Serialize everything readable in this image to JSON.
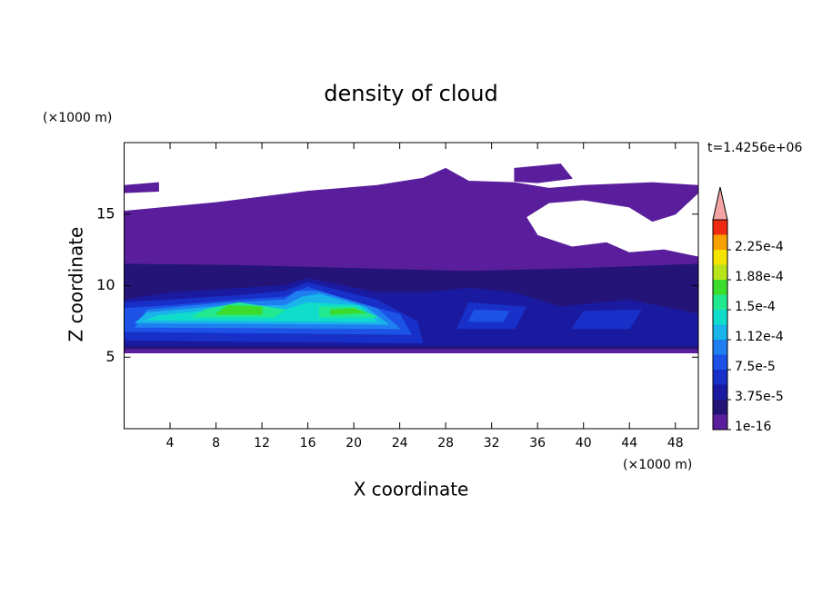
{
  "chart_data": {
    "type": "contour",
    "title": "density of cloud",
    "x_label": "X coordinate",
    "y_label": "Z coordinate",
    "x_unit": "(×1000 m)",
    "y_unit": "(×1000 m)",
    "annotation": "t=1.4256e+06",
    "xlim": [
      0,
      50
    ],
    "ylim": [
      0,
      20
    ],
    "xticks": [
      4,
      8,
      12,
      16,
      20,
      24,
      28,
      32,
      36,
      40,
      44,
      48
    ],
    "yticks": [
      5,
      10,
      15
    ],
    "levels": [
      1e-16,
      1.875e-05,
      3.75e-05,
      5.625e-05,
      7.5e-05,
      9.375e-05,
      0.0001125,
      0.00013125,
      0.00015,
      0.00016875,
      0.0001875,
      0.00020625,
      0.000225,
      0.00024375
    ],
    "colors": [
      "#5a1e9c",
      "#241478",
      "#1a1aa0",
      "#1830c8",
      "#1c52e6",
      "#1f7ff0",
      "#18b4ea",
      "#10dccc",
      "#22e890",
      "#3cdc2c",
      "#b8e41c",
      "#f4e400",
      "#f8a000",
      "#ee2a10"
    ],
    "extend_color": "#f4a4a4",
    "cbar_ticks": [
      {
        "value": 1e-16,
        "label": "1e-16"
      },
      {
        "value": 3.75e-05,
        "label": "3.75e-5"
      },
      {
        "value": 7.5e-05,
        "label": "7.5e-5"
      },
      {
        "value": 0.0001125,
        "label": "1.12e-4"
      },
      {
        "value": 0.00015,
        "label": "1.5e-4"
      },
      {
        "value": 0.0001875,
        "label": "1.88e-4"
      },
      {
        "value": 0.000225,
        "label": "2.25e-4"
      }
    ],
    "regions": [
      {
        "value": 1e-16,
        "points": [
          [
            0,
            5.3
          ],
          [
            50,
            5.3
          ],
          [
            50,
            12
          ],
          [
            47,
            12.5
          ],
          [
            44,
            12.3
          ],
          [
            42,
            13
          ],
          [
            39,
            12.7
          ],
          [
            36,
            13.5
          ],
          [
            35,
            14.8
          ],
          [
            37,
            15.8
          ],
          [
            40,
            16
          ],
          [
            44,
            15.5
          ],
          [
            46,
            14.5
          ],
          [
            48,
            15
          ],
          [
            50,
            16.5
          ],
          [
            50,
            17
          ],
          [
            46,
            17.2
          ],
          [
            40,
            17
          ],
          [
            37,
            16.8
          ],
          [
            34,
            17.2
          ],
          [
            30,
            17.3
          ],
          [
            28,
            18.2
          ],
          [
            26,
            17.5
          ],
          [
            22,
            17
          ],
          [
            16,
            16.6
          ],
          [
            12,
            16.2
          ],
          [
            8,
            15.8
          ],
          [
            4,
            15.5
          ],
          [
            0,
            15.2
          ]
        ]
      },
      {
        "value": 1e-16,
        "points": [
          [
            34,
            18.2
          ],
          [
            38,
            18.5
          ],
          [
            39,
            17.5
          ],
          [
            36,
            17.2
          ],
          [
            34,
            17.3
          ]
        ]
      },
      {
        "value": 1e-16,
        "points": [
          [
            0,
            17
          ],
          [
            3,
            17.2
          ],
          [
            3,
            16.6
          ],
          [
            0,
            16.5
          ]
        ]
      },
      {
        "value": 1.875e-05,
        "points": [
          [
            0,
            5.6
          ],
          [
            50,
            5.6
          ],
          [
            50,
            11.5
          ],
          [
            40,
            11.2
          ],
          [
            30,
            11
          ],
          [
            20,
            11.2
          ],
          [
            10,
            11.4
          ],
          [
            0,
            11.5
          ]
        ]
      },
      {
        "value": 3.75e-05,
        "points": [
          [
            0,
            5.8
          ],
          [
            50,
            5.8
          ],
          [
            50,
            8
          ],
          [
            44,
            9
          ],
          [
            38,
            8.5
          ],
          [
            34,
            9.5
          ],
          [
            30,
            9.8
          ],
          [
            26,
            9.5
          ],
          [
            22,
            9.5
          ],
          [
            16,
            10.5
          ],
          [
            14,
            10
          ],
          [
            10,
            9.8
          ],
          [
            4,
            9.5
          ],
          [
            0,
            9
          ]
        ]
      },
      {
        "value": 5.625e-05,
        "points": [
          [
            0,
            6.2
          ],
          [
            26,
            6
          ],
          [
            25.5,
            7.5
          ],
          [
            22,
            9
          ],
          [
            16,
            10.2
          ],
          [
            14,
            9.6
          ],
          [
            10,
            9.3
          ],
          [
            4,
            9
          ],
          [
            0,
            8.8
          ]
        ]
      },
      {
        "value": 5.625e-05,
        "points": [
          [
            29,
            7
          ],
          [
            34,
            7
          ],
          [
            35,
            8.5
          ],
          [
            30,
            8.8
          ]
        ]
      },
      {
        "value": 5.625e-05,
        "points": [
          [
            39,
            7
          ],
          [
            44,
            7
          ],
          [
            45,
            8.3
          ],
          [
            40,
            8.2
          ]
        ]
      },
      {
        "value": 7.5e-05,
        "points": [
          [
            0,
            6.8
          ],
          [
            25,
            6.6
          ],
          [
            24,
            8
          ],
          [
            20,
            8.8
          ],
          [
            16,
            9.9
          ],
          [
            14,
            9.2
          ],
          [
            10,
            9
          ],
          [
            4,
            8.6
          ],
          [
            0,
            8.4
          ]
        ]
      },
      {
        "value": 7.5e-05,
        "points": [
          [
            30,
            7.5
          ],
          [
            33,
            7.5
          ],
          [
            33.5,
            8.2
          ],
          [
            30.5,
            8.3
          ]
        ]
      },
      {
        "value": 9.375e-05,
        "points": [
          [
            1,
            7.1
          ],
          [
            24,
            7
          ],
          [
            22,
            8.4
          ],
          [
            17,
            9.6
          ],
          [
            15,
            9.6
          ],
          [
            14,
            9
          ],
          [
            9,
            8.8
          ],
          [
            2,
            8.3
          ]
        ]
      },
      {
        "value": 0.0001125,
        "points": [
          [
            1,
            7.4
          ],
          [
            23,
            7.3
          ],
          [
            21,
            8.5
          ],
          [
            17,
            9.4
          ],
          [
            15.5,
            9.2
          ],
          [
            14,
            8.6
          ],
          [
            9,
            8.6
          ],
          [
            2,
            8.1
          ]
        ]
      },
      {
        "value": 0.00013125,
        "points": [
          [
            2,
            7.6
          ],
          [
            22,
            7.5
          ],
          [
            20.5,
            8.6
          ],
          [
            16,
            8.8
          ],
          [
            14,
            8.3
          ],
          [
            9,
            8.4
          ],
          [
            3,
            7.9
          ]
        ]
      },
      {
        "value": 0.00015,
        "points": [
          [
            6,
            7.8
          ],
          [
            13,
            7.8
          ],
          [
            14,
            8.3
          ],
          [
            10,
            8.8
          ],
          [
            7,
            8.3
          ]
        ]
      },
      {
        "value": 0.00015,
        "points": [
          [
            17,
            7.8
          ],
          [
            22,
            7.8
          ],
          [
            20,
            8.5
          ],
          [
            17,
            8.5
          ]
        ]
      },
      {
        "value": 0.00016875,
        "points": [
          [
            8,
            8
          ],
          [
            12,
            8
          ],
          [
            12,
            8.5
          ],
          [
            9,
            8.6
          ]
        ]
      },
      {
        "value": 0.00016875,
        "points": [
          [
            18,
            8
          ],
          [
            21,
            8.1
          ],
          [
            20,
            8.4
          ],
          [
            18,
            8.3
          ]
        ]
      }
    ]
  }
}
